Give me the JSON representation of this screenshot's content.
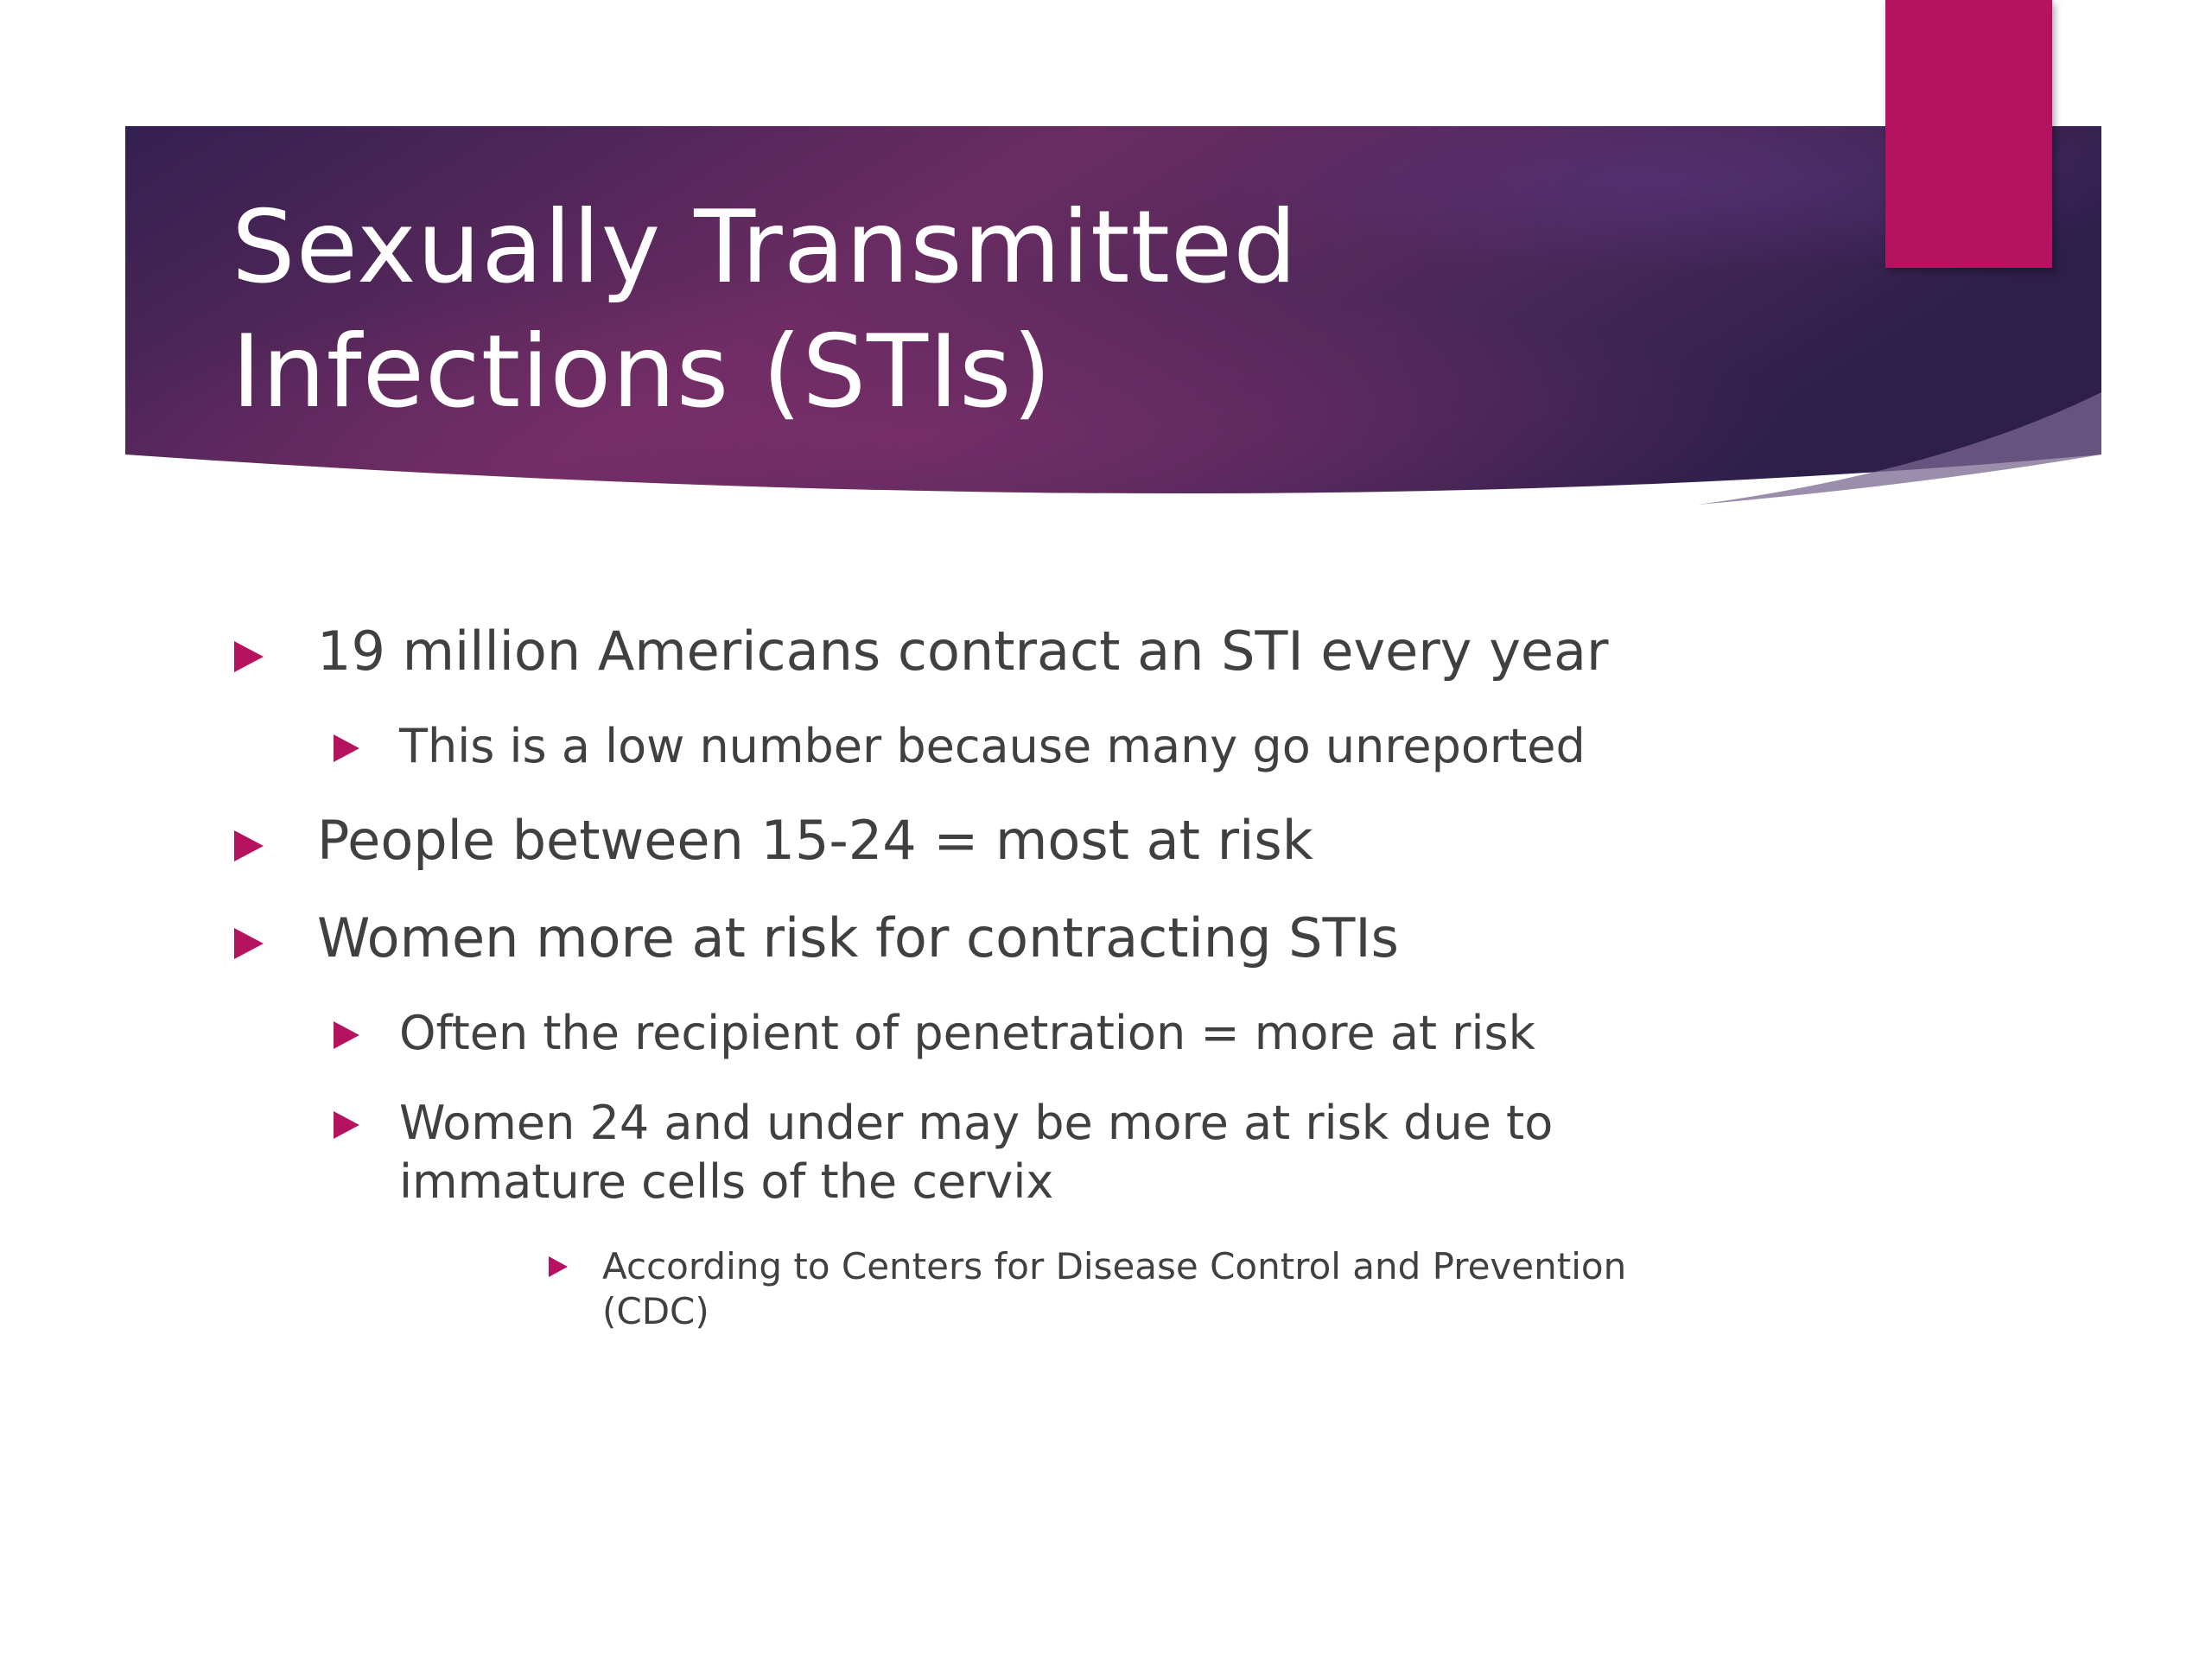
{
  "slide": {
    "title": "Sexually Transmitted\nInfections (STIs)",
    "colors": {
      "banner_dark": "#2e1f4c",
      "banner_mid": "#5e2a5e",
      "accent": "#b5135f",
      "text": "#404040",
      "title_text": "#ffffff"
    },
    "bullets": [
      {
        "level": 1,
        "text": "19 million Americans contract an STI every year",
        "icon": "triangle-bullet-icon"
      },
      {
        "level": 2,
        "text": "This is a low number because many go unreported",
        "icon": "triangle-bullet-icon"
      },
      {
        "level": 1,
        "text": "People between 15-24 = most at risk",
        "icon": "triangle-bullet-icon"
      },
      {
        "level": 1,
        "text": "Women more at risk for contracting STIs",
        "icon": "triangle-bullet-icon"
      },
      {
        "level": 2,
        "text": "Often the recipient of penetration = more at risk",
        "icon": "triangle-bullet-icon"
      },
      {
        "level": 2,
        "text": "Women 24 and under may be more at risk due to\nimmature cells of the cervix",
        "icon": "triangle-bullet-icon"
      },
      {
        "level": 3,
        "text": "According to Centers for Disease Control and Prevention\n(CDC)",
        "icon": "triangle-bullet-icon"
      }
    ]
  }
}
